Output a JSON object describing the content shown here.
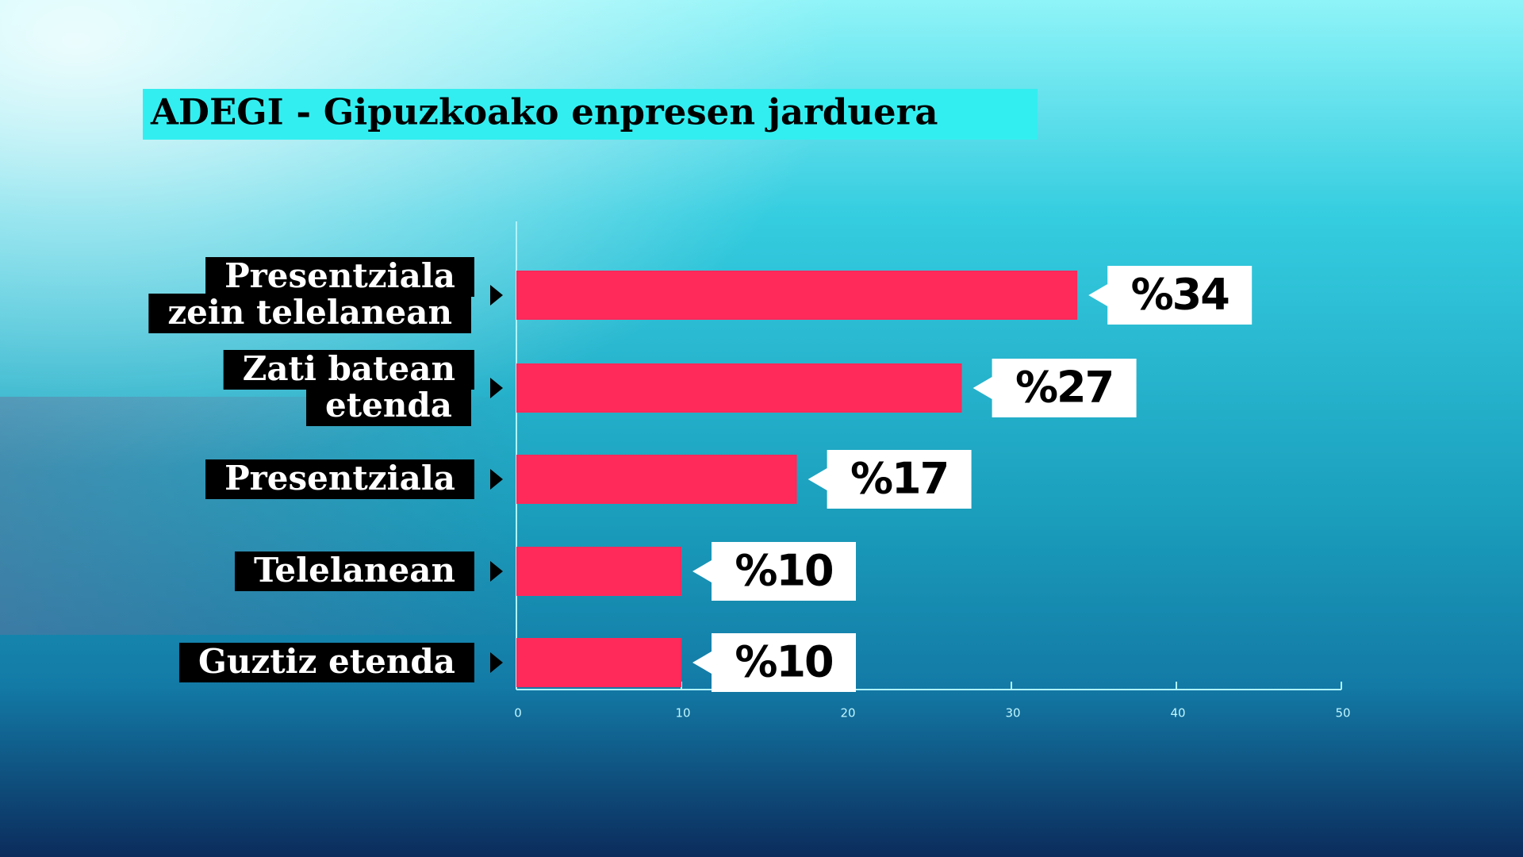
{
  "chart_data": {
    "type": "bar",
    "title": "ADEGI - Gipuzkoako enpresen jarduera",
    "categories": [
      [
        "Presentziala",
        "zein telelanean"
      ],
      [
        "Zati batean",
        "etenda"
      ],
      [
        "Presentziala"
      ],
      [
        "Telelanean"
      ],
      [
        "Guztiz etenda"
      ]
    ],
    "values": [
      34,
      27,
      17,
      10,
      10
    ],
    "value_labels": [
      "%34",
      "%27",
      "%17",
      "%10",
      "%10"
    ],
    "color": "#ff2a5a",
    "xlim": [
      0,
      50
    ],
    "xticks": [
      0,
      10,
      20,
      30,
      40,
      50
    ]
  }
}
